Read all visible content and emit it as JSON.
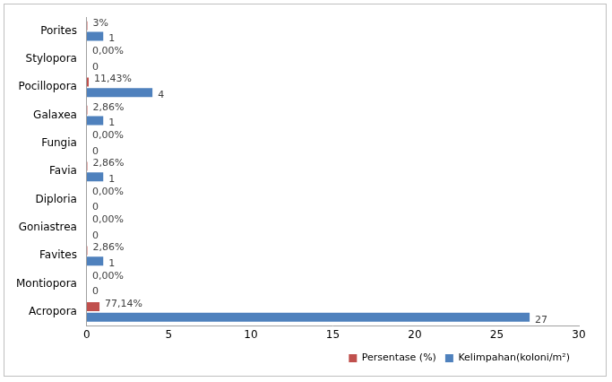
{
  "chart_data": {
    "type": "bar",
    "orientation": "horizontal",
    "categories": [
      "Porites",
      "Stylopora",
      "Pocillopora",
      "Galaxea",
      "Fungia",
      "Favia",
      "Diploria",
      "Goniastrea",
      "Favites",
      "Montiopora",
      "Acropora"
    ],
    "series": [
      {
        "name": "Persentase (%)",
        "color": "#c0504d",
        "values": [
          0.03,
          0,
          0.1143,
          0.0286,
          0,
          0.0286,
          0,
          0,
          0.0286,
          0,
          0.7714
        ],
        "value_labels": [
          "3%",
          "0,00%",
          "11,43%",
          "2,86%",
          "0,00%",
          "2,86%",
          "0,00%",
          "0,00%",
          "2,86%",
          "0,00%",
          "77,14%"
        ]
      },
      {
        "name": "Kelimpahan(koloni/m²)",
        "color": "#4f81bd",
        "values": [
          1,
          0,
          4,
          1,
          0,
          1,
          0,
          0,
          1,
          0,
          27
        ]
      }
    ],
    "xlim": [
      0,
      30
    ],
    "xticks": [
      0,
      5,
      10,
      15,
      20,
      25,
      30
    ],
    "grid": false,
    "legend": "bottom right",
    "data_labels": true
  }
}
